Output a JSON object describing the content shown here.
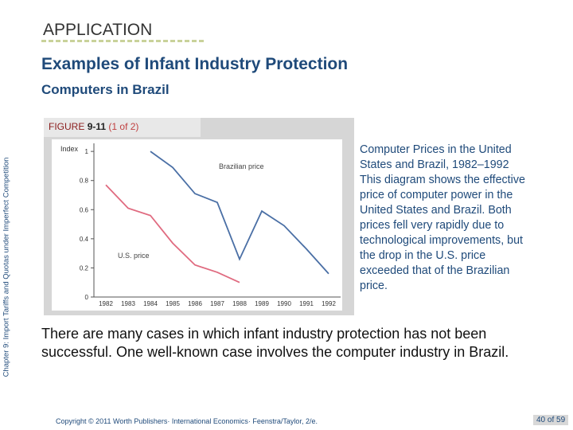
{
  "header": {
    "label": "APPLICATION",
    "title": "Examples of Infant Industry Protection",
    "subtitle": "Computers in Brazil"
  },
  "side_text": "Chapter 9: Import Tariffs and Quotas under Imperfect Competition",
  "figure": {
    "label": "FIGURE",
    "number": "9-11",
    "part": "(1 of 2)",
    "caption": "Computer Prices in the United States and Brazil, 1982–1992 This diagram shows the effective price of computer power in the United States and Brazil. Both prices fell very rapidly due to technological improvements, but the drop in the U.S. price exceeded that of the Brazilian price."
  },
  "chart_data": {
    "type": "line",
    "y_label": "Index",
    "categories": [
      "1982",
      "1983",
      "1984",
      "1985",
      "1986",
      "1987",
      "1988",
      "1989",
      "1990",
      "1991",
      "1992"
    ],
    "series": [
      {
        "name": "Brazilian price",
        "color": "#4a6fa5",
        "values": [
          null,
          null,
          1.0,
          0.89,
          0.71,
          0.65,
          0.26,
          0.59,
          0.49,
          0.33,
          0.16
        ]
      },
      {
        "name": "U.S. price",
        "color": "#e06b80",
        "values": [
          0.77,
          0.61,
          0.56,
          0.37,
          0.22,
          0.17,
          0.1,
          null,
          null,
          null,
          null
        ]
      }
    ],
    "ylim": [
      0,
      1.05
    ],
    "yticks": [
      0,
      0.2,
      0.4,
      0.6,
      0.8,
      1
    ]
  },
  "body": "There are many cases in which infant industry protection has not been successful.  One well-known case involves the computer industry in Brazil.",
  "footer": {
    "copyright": "Copyright © 2011 Worth Publishers· International Economics· Feenstra/Taylor, 2/e.",
    "page": "40 of 59"
  }
}
